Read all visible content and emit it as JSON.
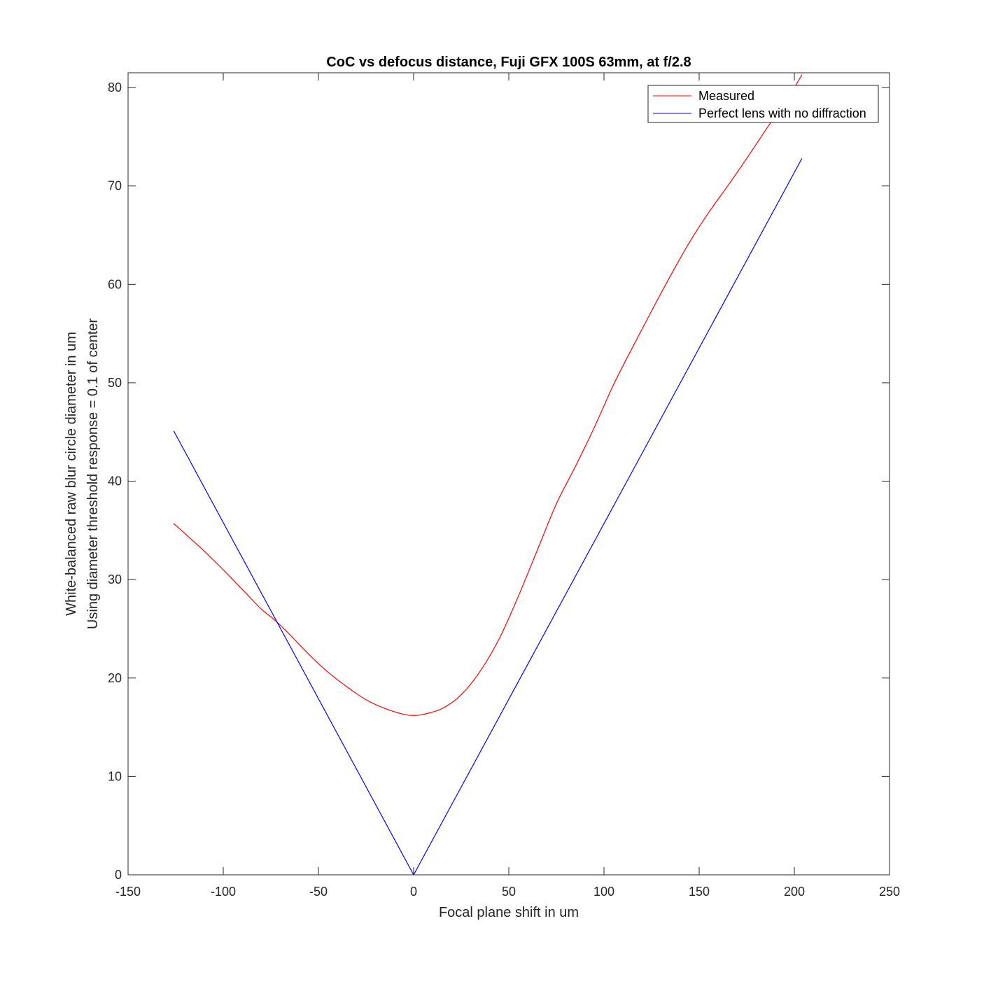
{
  "chart_data": {
    "type": "line",
    "title": "CoC vs defocus distance, Fuji GFX 100S 63mm, at f/2.8",
    "xlabel": "Focal plane shift in um",
    "ylabel_lines": [
      "White-balanced raw blur circle diameter in um",
      "Using diameter threshold response = 0.1 of center"
    ],
    "xlim": [
      -150,
      250
    ],
    "ylim": [
      0,
      81.5
    ],
    "xticks": [
      -150,
      -100,
      -50,
      0,
      50,
      100,
      150,
      200,
      250
    ],
    "yticks": [
      0,
      10,
      20,
      30,
      40,
      50,
      60,
      70,
      80
    ],
    "xtick_labels": [
      "-150",
      "-100",
      "-50",
      "0",
      "50",
      "100",
      "150",
      "200",
      "250"
    ],
    "ytick_labels": [
      "0",
      "10",
      "20",
      "30",
      "40",
      "50",
      "60",
      "70",
      "80"
    ],
    "grid": false,
    "legend_position": "top-right",
    "series": [
      {
        "name": "Measured",
        "color": "#ff0000",
        "x": [
          -126,
          -110,
          -100,
          -90,
          -80,
          -73,
          -65,
          -55,
          -45,
          -35,
          -25,
          -15,
          -5,
          0,
          5,
          15,
          25,
          35,
          45,
          55,
          65,
          75,
          85,
          95,
          105,
          115,
          125,
          135,
          145,
          155,
          165,
          175,
          185,
          195,
          200,
          204
        ],
        "y": [
          35.7,
          32.9,
          31.0,
          29.0,
          27.0,
          25.9,
          24.4,
          22.4,
          20.6,
          19.1,
          17.8,
          16.9,
          16.3,
          16.2,
          16.3,
          16.9,
          18.3,
          20.7,
          24.0,
          28.3,
          33.0,
          37.7,
          41.5,
          45.5,
          49.8,
          53.6,
          57.3,
          60.9,
          64.3,
          67.3,
          70.0,
          72.8,
          75.7,
          78.6,
          80.0,
          81.3
        ]
      },
      {
        "name": "Perfect lens with no diffraction",
        "color": "#0000ff",
        "x": [
          -126,
          0,
          204
        ],
        "y": [
          45.1,
          0,
          72.8
        ]
      }
    ]
  }
}
